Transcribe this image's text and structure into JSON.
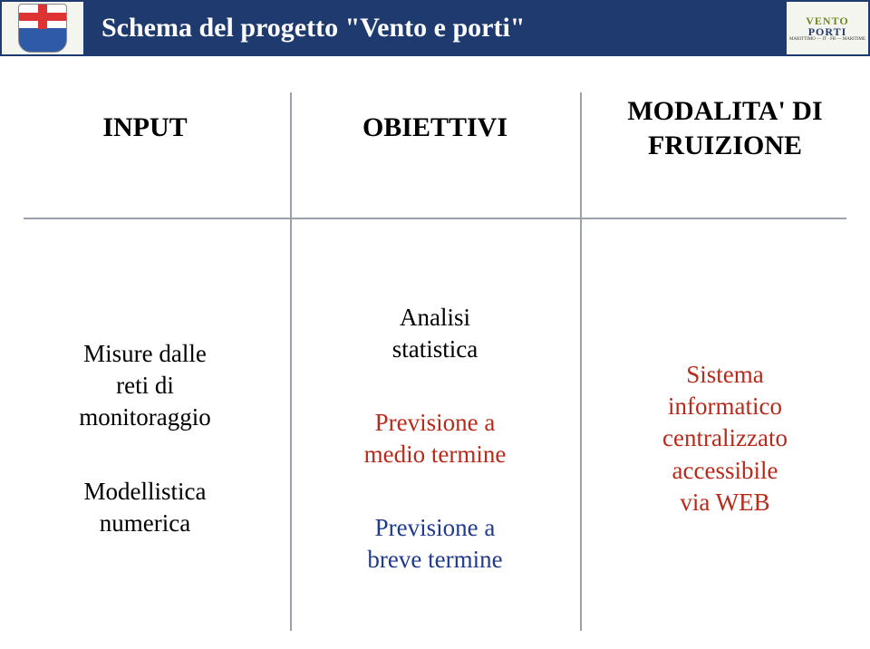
{
  "header": {
    "title": "Schema del progetto \"Vento e porti\""
  },
  "columns": {
    "c1": {
      "header": "INPUT"
    },
    "c2": {
      "header": "OBIETTIVI"
    },
    "c3": {
      "header_line1": "MODALITA' DI",
      "header_line2": "FRUIZIONE"
    }
  },
  "col1": {
    "b1_l1": "Misure dalle",
    "b1_l2": "reti di",
    "b1_l3": "monitoraggio",
    "b2_l1": "Modellistica",
    "b2_l2": "numerica"
  },
  "col2": {
    "b1_l1": "Analisi",
    "b1_l2": "statistica",
    "b2_l1": "Previsione a",
    "b2_l2": "medio termine",
    "b3_l1": "Previsione a",
    "b3_l2": "breve termine"
  },
  "col3": {
    "l1": "Sistema",
    "l2": "informatico",
    "l3": "centralizzato",
    "l4": "accessibile",
    "l5": "via WEB"
  },
  "logo_right": {
    "line1": "VENTO",
    "line2": "PORTI",
    "sub": "MARITTIMO — IT · FR — MARITIME"
  },
  "colors": {
    "header_bg": "#1f3a6e",
    "header_text": "#ffffff",
    "divider": "#9aa0a8",
    "text_black": "#000000",
    "text_red": "#b82a1a",
    "text_blue": "#1f3a8e"
  }
}
